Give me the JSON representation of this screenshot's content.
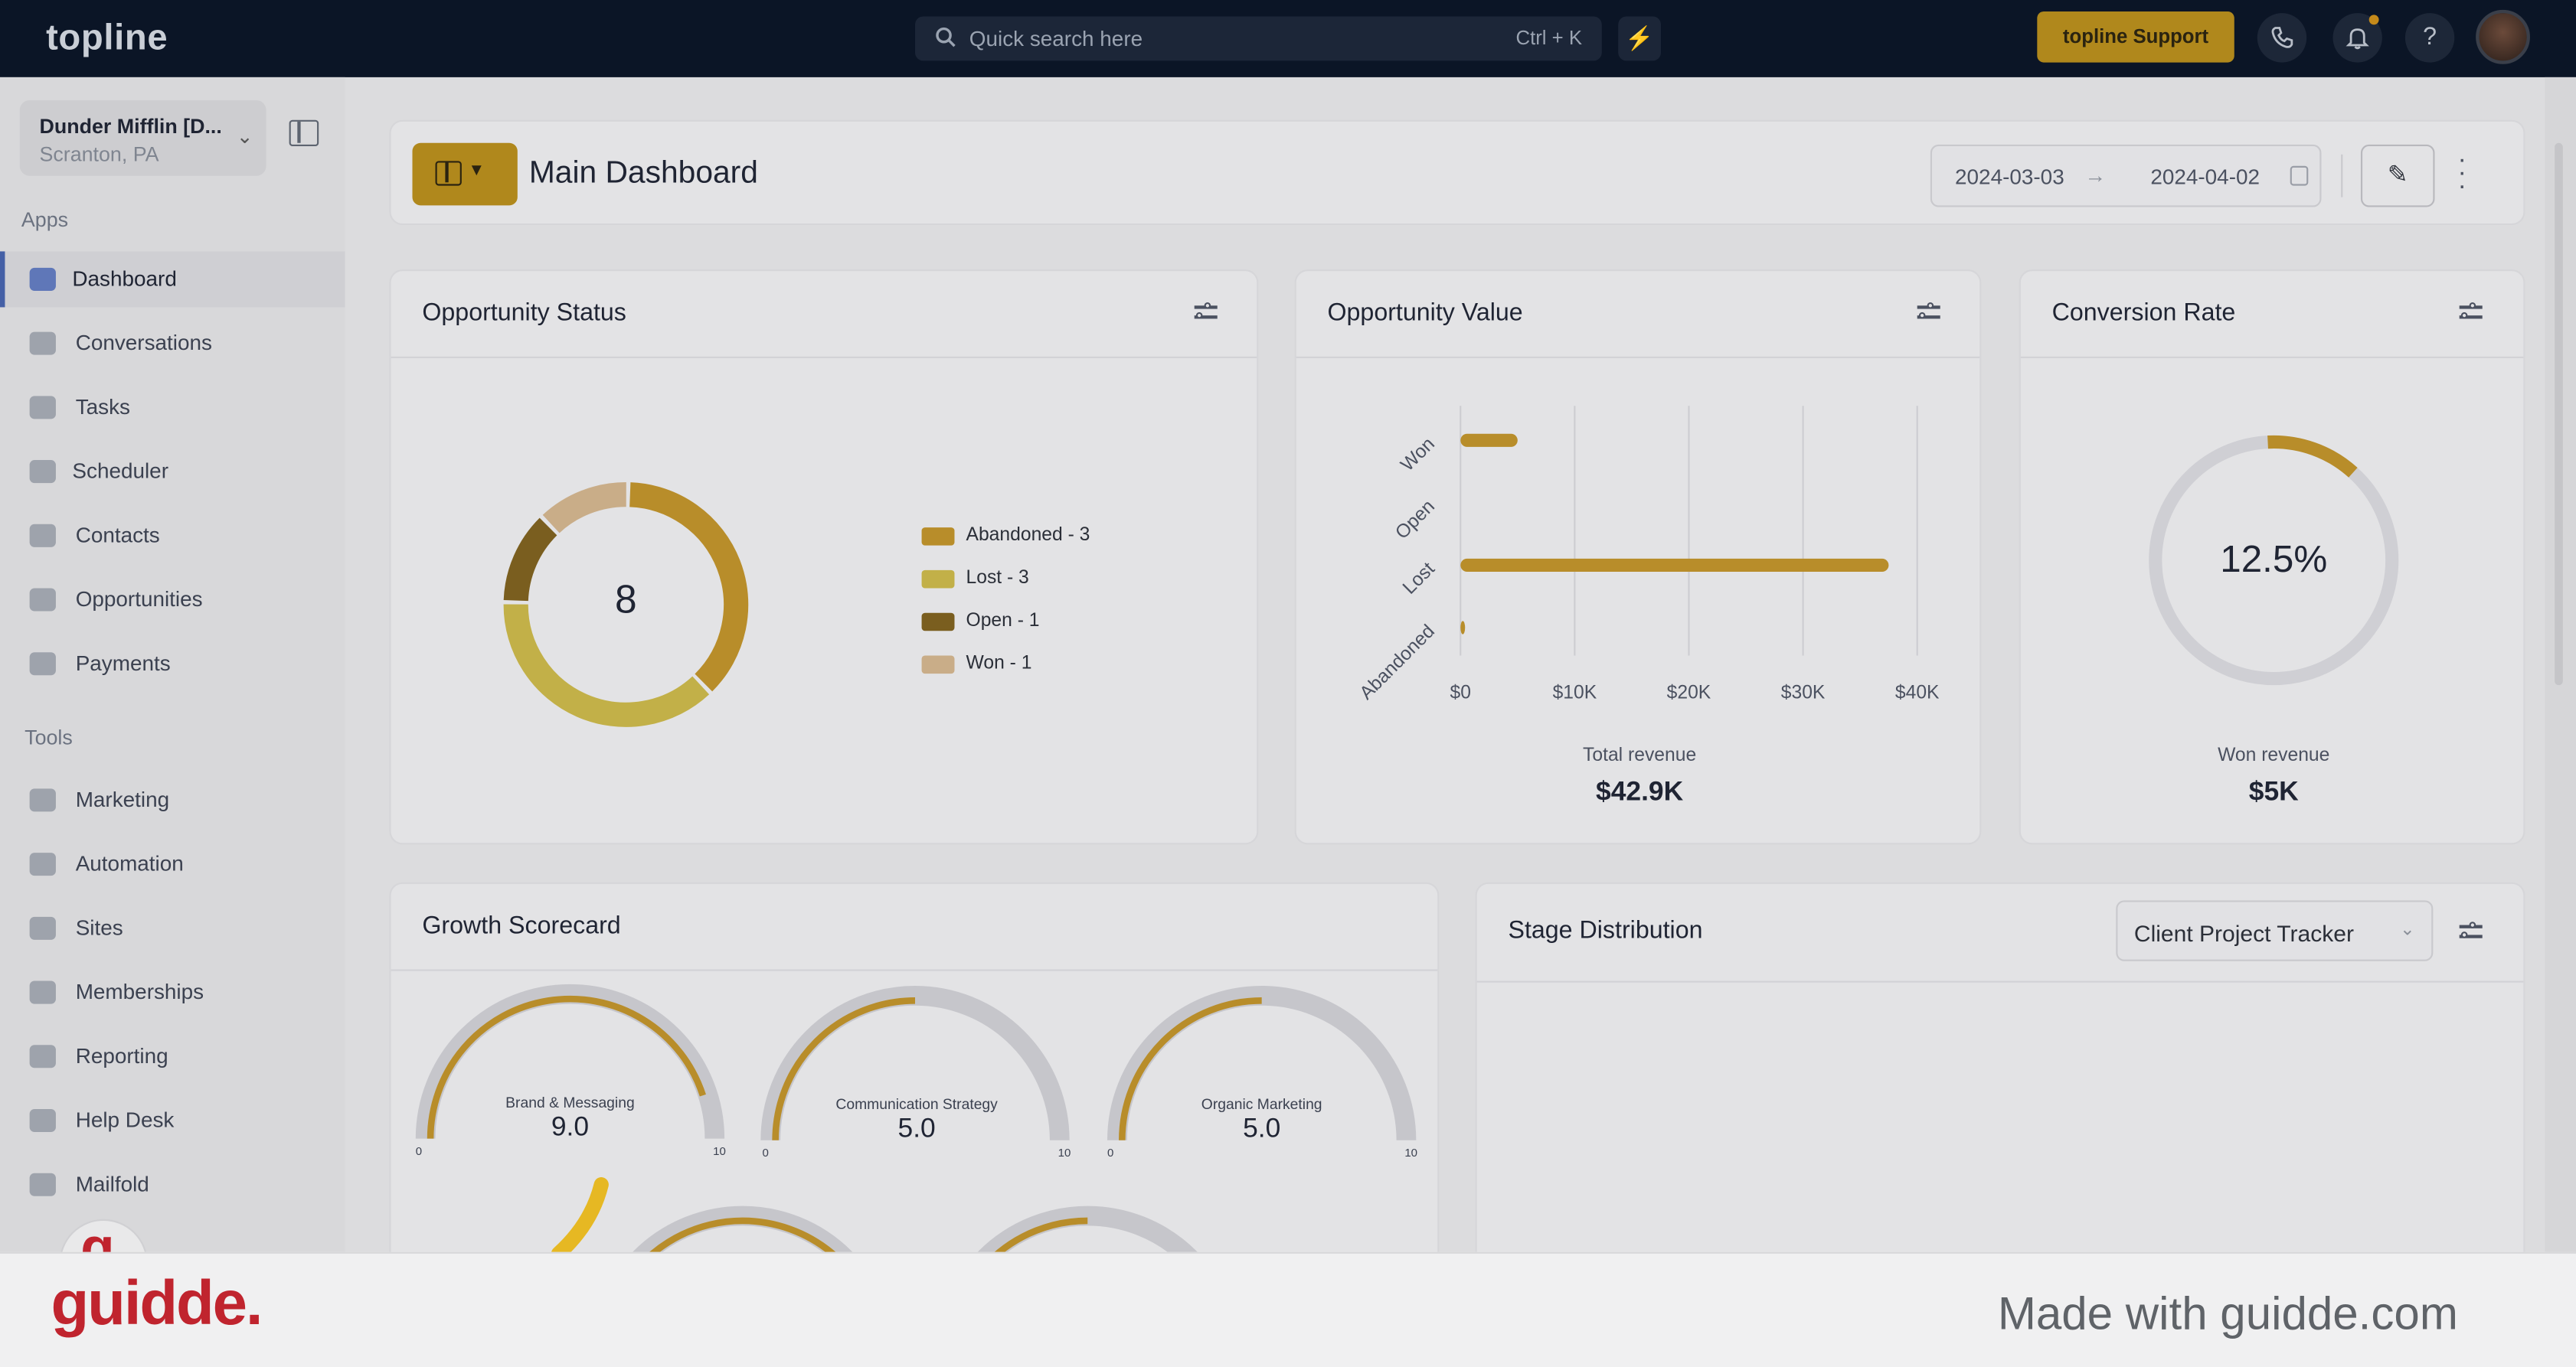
{
  "app": {
    "logo": "topline",
    "accent": "#b0881c"
  },
  "topbar": {
    "search_placeholder": "Quick search here",
    "search_shortcut": "Ctrl + K",
    "support_label": "topline Support",
    "icons": [
      "search-icon",
      "bolt-icon",
      "phone-icon",
      "bell-icon",
      "help-icon"
    ],
    "help_glyph": "?"
  },
  "account": {
    "name": "Dunder Mifflin [D...",
    "location": "Scranton, PA"
  },
  "sidebar": {
    "apps_heading": "Apps",
    "apps": [
      {
        "label": "Dashboard",
        "icon": "dashboard-icon",
        "active": true
      },
      {
        "label": "Conversations",
        "icon": "chat-icon"
      },
      {
        "label": "Tasks",
        "icon": "tasks-icon"
      },
      {
        "label": "Scheduler",
        "icon": "calendar-icon"
      },
      {
        "label": "Contacts",
        "icon": "user-icon"
      },
      {
        "label": "Opportunities",
        "icon": "target-icon"
      },
      {
        "label": "Payments",
        "icon": "credit-card-icon"
      }
    ],
    "tools_heading": "Tools",
    "tools": [
      {
        "label": "Marketing",
        "icon": "megaphone-icon"
      },
      {
        "label": "Automation",
        "icon": "gears-icon"
      },
      {
        "label": "Sites",
        "icon": "globe-icon"
      },
      {
        "label": "Memberships",
        "icon": "users-icon"
      },
      {
        "label": "Reporting",
        "icon": "pie-icon"
      },
      {
        "label": "Help Desk",
        "icon": "help-circle-icon"
      },
      {
        "label": "Mailfold",
        "icon": "mail-icon"
      }
    ]
  },
  "header": {
    "title": "Main Dashboard",
    "date_from": "2024-03-03",
    "date_to": "2024-04-02",
    "arrow": "→"
  },
  "opportunity_status": {
    "title": "Opportunity Status",
    "total": "8",
    "legend": [
      {
        "label": "Abandoned - 3",
        "color": "#b88d2a"
      },
      {
        "label": "Lost - 3",
        "color": "#c2b048"
      },
      {
        "label": "Open - 1",
        "color": "#7a5e1f"
      },
      {
        "label": "Won - 1",
        "color": "#c9ad88"
      }
    ]
  },
  "opportunity_value": {
    "title": "Opportunity Value",
    "footer_label": "Total revenue",
    "footer_value": "$42.9K"
  },
  "conversion_rate": {
    "title": "Conversion Rate",
    "value": "12.5%",
    "footer_label": "Won revenue",
    "footer_value": "$5K",
    "fraction": 0.125
  },
  "growth_scorecard": {
    "title": "Growth Scorecard",
    "gauges": [
      {
        "label": "Brand & Messaging",
        "value": "9.0",
        "min": "0",
        "max": "10",
        "fraction": 0.9
      },
      {
        "label": "Communication Strategy",
        "value": "5.0",
        "min": "0",
        "max": "10",
        "fraction": 0.5
      },
      {
        "label": "Organic Marketing",
        "value": "5.0",
        "min": "0",
        "max": "10",
        "fraction": 0.5
      }
    ]
  },
  "stage_distribution": {
    "title": "Stage Distribution",
    "pipeline": "Client Project Tracker"
  },
  "footer": {
    "brand": "guidde.",
    "made_with": "Made with guidde.com"
  },
  "chart_data": [
    {
      "type": "pie",
      "title": "Opportunity Status",
      "categories": [
        "Abandoned",
        "Lost",
        "Open",
        "Won"
      ],
      "values": [
        3,
        3,
        1,
        1
      ],
      "colors": [
        "#b88d2a",
        "#c2b048",
        "#7a5e1f",
        "#c9ad88"
      ],
      "legend": "right"
    },
    {
      "type": "bar",
      "orientation": "horizontal",
      "title": "Opportunity Value",
      "categories": [
        "Won",
        "Open",
        "Lost",
        "Abandoned"
      ],
      "values": [
        5000,
        0,
        37500,
        400
      ],
      "xticks": [
        "$0",
        "$10K",
        "$20K",
        "$30K",
        "$40K"
      ],
      "xlim": [
        0,
        40000
      ],
      "grid": true,
      "color": "#b88d2a"
    }
  ]
}
